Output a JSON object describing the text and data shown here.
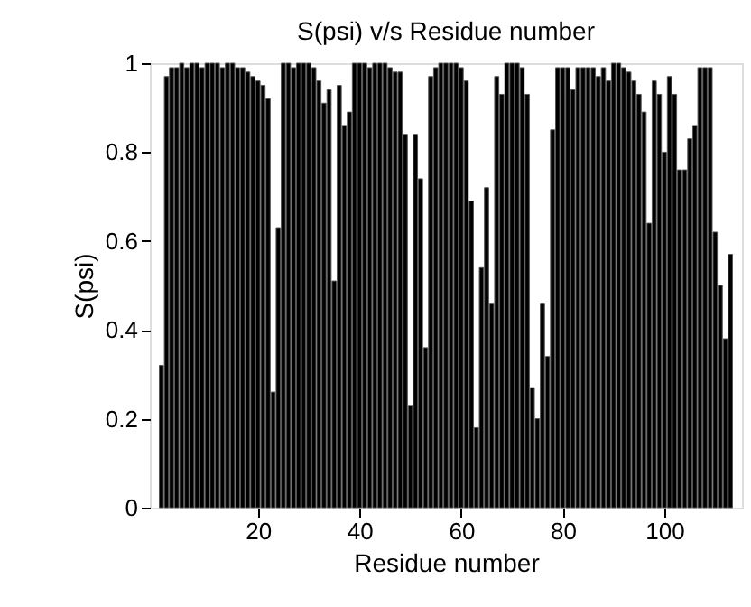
{
  "chart_data": {
    "type": "bar",
    "title": "S(psi) v/s Residue number",
    "xlabel": "Residue number",
    "ylabel": "S(psi)",
    "x": [
      1,
      2,
      3,
      4,
      5,
      6,
      7,
      8,
      9,
      10,
      11,
      12,
      13,
      14,
      15,
      16,
      17,
      18,
      19,
      20,
      21,
      22,
      23,
      24,
      25,
      26,
      27,
      28,
      29,
      30,
      31,
      32,
      33,
      34,
      35,
      36,
      37,
      38,
      39,
      40,
      41,
      42,
      43,
      44,
      45,
      46,
      47,
      48,
      49,
      50,
      51,
      52,
      53,
      54,
      55,
      56,
      57,
      58,
      59,
      60,
      61,
      62,
      63,
      64,
      65,
      66,
      67,
      68,
      69,
      70,
      71,
      72,
      73,
      74,
      75,
      76,
      77,
      78,
      79,
      80,
      81,
      82,
      83,
      84,
      85,
      86,
      87,
      88,
      89,
      90,
      91,
      92,
      93,
      94,
      95,
      96,
      97,
      98,
      99,
      100,
      101,
      102,
      103,
      104,
      105,
      106,
      107,
      108,
      109,
      110,
      111,
      112,
      113
    ],
    "values": [
      0.32,
      0.97,
      0.99,
      0.99,
      1.0,
      0.99,
      1.0,
      1.0,
      0.99,
      1.0,
      1.0,
      1.0,
      0.99,
      1.0,
      1.0,
      0.99,
      0.99,
      0.98,
      0.97,
      0.96,
      0.95,
      0.92,
      0.26,
      0.63,
      1.0,
      1.0,
      0.99,
      1.0,
      1.0,
      1.0,
      0.99,
      0.96,
      0.91,
      0.94,
      0.51,
      0.95,
      0.86,
      0.89,
      1.0,
      1.0,
      1.0,
      0.99,
      1.0,
      1.0,
      1.0,
      0.99,
      0.98,
      0.98,
      0.84,
      0.23,
      0.84,
      0.74,
      0.36,
      0.97,
      0.99,
      1.0,
      1.0,
      1.0,
      1.0,
      0.99,
      0.96,
      0.69,
      0.18,
      0.54,
      0.72,
      0.46,
      0.97,
      0.93,
      1.0,
      1.0,
      1.0,
      0.99,
      0.93,
      0.27,
      0.2,
      0.46,
      0.34,
      0.85,
      0.99,
      0.99,
      0.99,
      0.94,
      0.99,
      0.99,
      0.99,
      0.99,
      0.97,
      0.99,
      0.96,
      1.0,
      1.0,
      0.99,
      0.98,
      0.96,
      0.93,
      0.89,
      0.64,
      0.96,
      0.93,
      0.8,
      0.97,
      0.93,
      0.76,
      0.76,
      0.83,
      0.86,
      0.99,
      0.99,
      0.99,
      0.62,
      0.5,
      0.38,
      0.57
    ],
    "color": "#000000",
    "xlim": [
      0.5,
      113.5
    ],
    "xticks": [
      20,
      40,
      60,
      80,
      100
    ],
    "ylim": [
      0,
      1
    ],
    "yticks": [
      0,
      0.2,
      0.4,
      0.6,
      0.8,
      1
    ],
    "grid": false
  }
}
